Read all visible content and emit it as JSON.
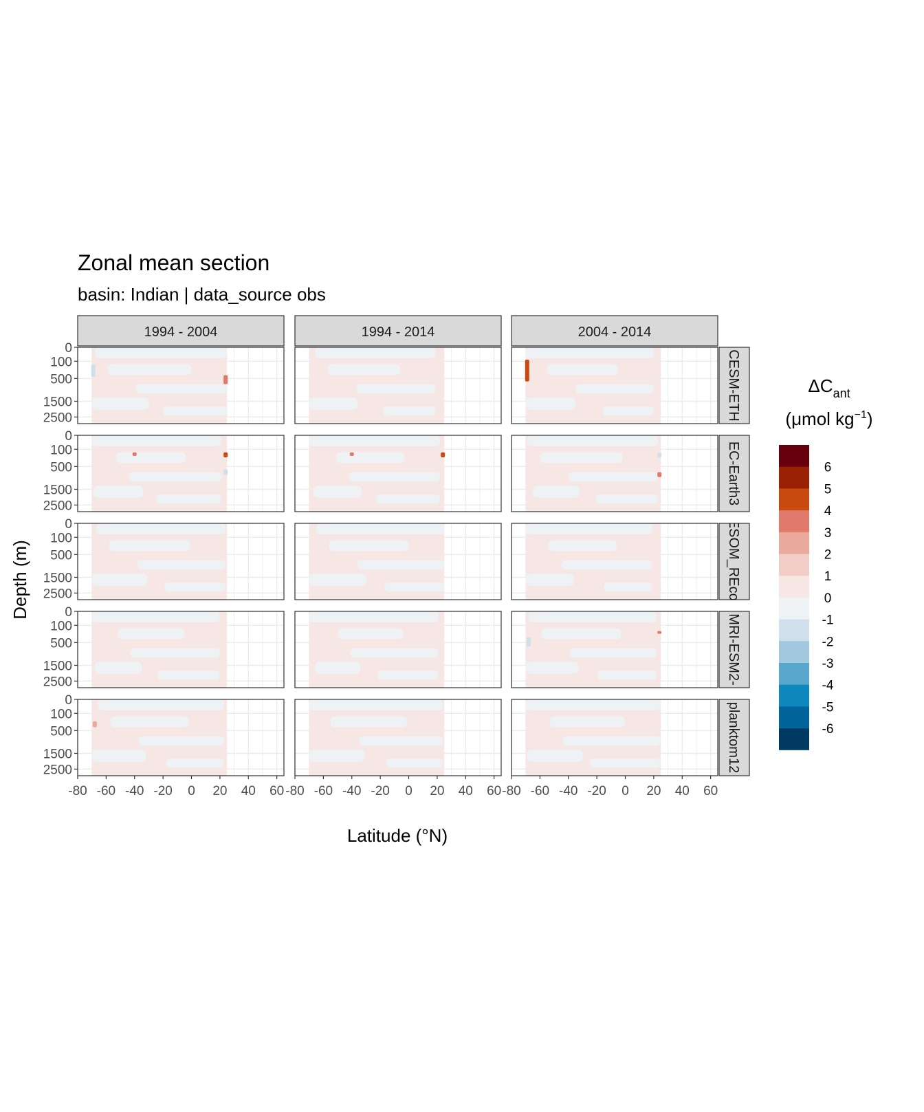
{
  "chart_data": {
    "type": "heatmap",
    "title": "Zonal mean section",
    "subtitle": "basin: Indian | data_source obs",
    "xlabel": "Latitude (°N)",
    "ylabel": "Depth (m)",
    "facet_columns": [
      "1994 - 2004",
      "1994 - 2014",
      "2004 - 2014"
    ],
    "facet_rows": [
      "CESM-ETH",
      "EC-Earth3",
      "FESOM_REcoM",
      "MRI-ESM2-",
      "planktom12"
    ],
    "x_ticks": [
      -80,
      -60,
      -40,
      -20,
      0,
      20,
      40,
      60
    ],
    "x_tick_labels": [
      "-80",
      "-60",
      "-40",
      "-20",
      "0",
      "20",
      "40",
      "60"
    ],
    "xlim": [
      -80,
      65
    ],
    "y_ticks": [
      0,
      100,
      500,
      1500,
      2500
    ],
    "y_tick_labels": [
      "0",
      "100",
      "500",
      "1500",
      "2500"
    ],
    "y_scale": "sqrt",
    "y_reversed": true,
    "ylim": [
      0,
      3000
    ],
    "data_lat_range": [
      -70,
      25
    ],
    "grid": true,
    "legend": {
      "title": "ΔC",
      "title_subscript": "ant",
      "unit_open": "(μmol kg",
      "unit_sup": "−1",
      "unit_close": ")",
      "placement": "right",
      "levels": [
        {
          "label": "6",
          "color": "#67000d"
        },
        {
          "label": "5",
          "color": "#9b2104"
        },
        {
          "label": "4",
          "color": "#c9490e"
        },
        {
          "label": "3",
          "color": "#e07a6a"
        },
        {
          "label": "2",
          "color": "#eba89c"
        },
        {
          "label": "1",
          "color": "#f2cdc6"
        },
        {
          "label": "0",
          "color": "#f6e6e4"
        },
        {
          "label": "-1",
          "color": "#eef2f5"
        },
        {
          "label": "-2",
          "color": "#cfdfec"
        },
        {
          "label": "-3",
          "color": "#a2c8de"
        },
        {
          "label": "-4",
          "color": "#5aa7cd"
        },
        {
          "label": "-5",
          "color": "#0f88bd"
        },
        {
          "label": "-6",
          "color": "#00639a"
        }
      ],
      "end_color": "#003a63"
    },
    "colors": {
      "positive_small": "#f6e6e4",
      "negative_small": "#eef2f5",
      "strip_fill": "#d9d9d9",
      "panel_border": "#333333",
      "grid": "#ebebeb"
    }
  }
}
